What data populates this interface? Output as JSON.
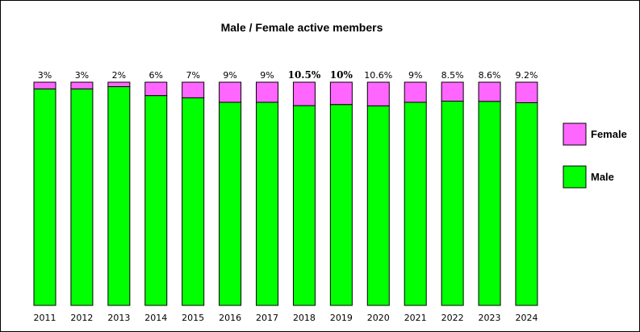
{
  "chart_data": {
    "type": "bar",
    "stacked": true,
    "title": "Male / Female active members",
    "xlabel": "",
    "ylabel": "",
    "ylim": [
      0,
      100
    ],
    "grid": false,
    "legend_position": "right",
    "categories": [
      "2011",
      "2012",
      "2013",
      "2014",
      "2015",
      "2016",
      "2017",
      "2018",
      "2019",
      "2020",
      "2021",
      "2022",
      "2023",
      "2024"
    ],
    "series": [
      {
        "name": "Male",
        "color": "#00ff00",
        "values": [
          97,
          97,
          98,
          94,
          93,
          91,
          91,
          89.5,
          90,
          89.4,
          91,
          91.5,
          91.4,
          90.8
        ]
      },
      {
        "name": "Female",
        "color": "#ff66ff",
        "values": [
          3,
          3,
          2,
          6,
          7,
          9,
          9,
          10.5,
          10,
          10.6,
          9,
          8.5,
          8.6,
          9.2
        ]
      }
    ],
    "data_labels": [
      "3%",
      "3%",
      "2%",
      "6%",
      "7%",
      "9%",
      "9%",
      "10.5%",
      "10%",
      "10.6%",
      "9%",
      "8.5%",
      "8.6%",
      "9.2%"
    ],
    "bold_labels": [
      false,
      false,
      false,
      false,
      false,
      false,
      false,
      true,
      true,
      false,
      false,
      false,
      false,
      false
    ],
    "legend": [
      {
        "label": "Female",
        "color": "#ff66ff"
      },
      {
        "label": "Male",
        "color": "#00ff00"
      }
    ]
  }
}
